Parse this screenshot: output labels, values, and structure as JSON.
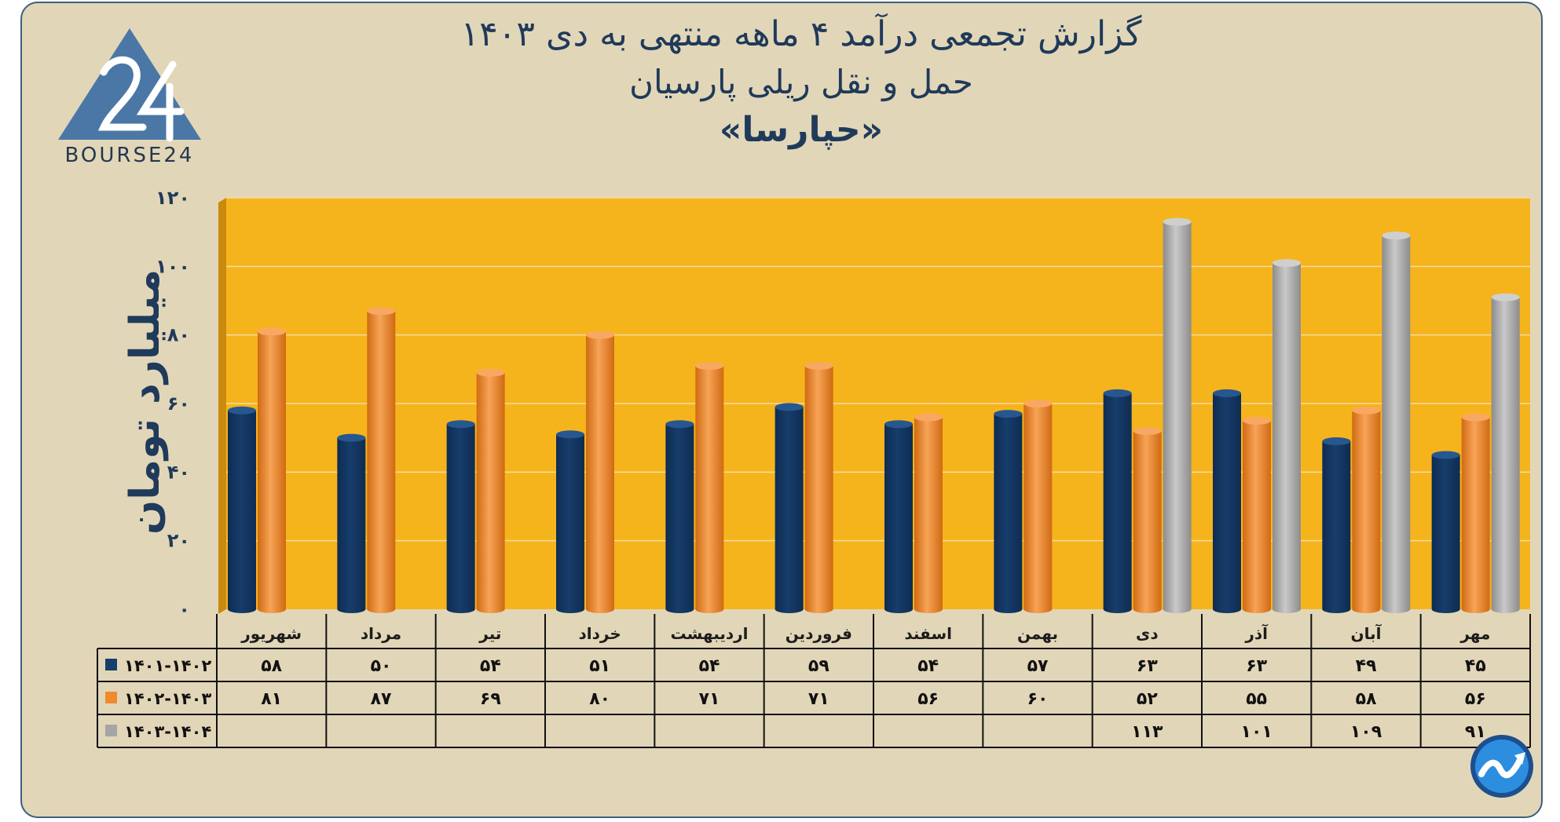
{
  "title": {
    "line1": "گزارش تجمعی درآمد ۴ ماهه منتهی به دی ۱۴۰۳",
    "line2": "حمل و نقل ریلی پارسیان",
    "line3": "«حپارسا»"
  },
  "logo": {
    "text": "BOURSE24",
    "mark": "24"
  },
  "colors": {
    "background": "#e2d6b8",
    "plot_area": "#f6b41c",
    "series_1": "#173d6b",
    "series_2": "#f08a2e",
    "series_3": "#a5a5a5",
    "text": "#1f3a5a"
  },
  "chart_data": {
    "type": "bar",
    "ylabel": "میلیارد تومان",
    "ylim": [
      0,
      120
    ],
    "ytick_labels": [
      "۰",
      "۲۰",
      "۴۰",
      "۶۰",
      "۸۰",
      "۱۰۰",
      "۱۲۰"
    ],
    "categories": [
      "مهر",
      "آبان",
      "آذر",
      "دی",
      "بهمن",
      "اسفند",
      "فروردین",
      "اردیبهشت",
      "خرداد",
      "تیر",
      "مرداد",
      "شهریور"
    ],
    "series": [
      {
        "name": "۱۴۰۱-۱۴۰۲",
        "values": [
          45,
          49,
          63,
          63,
          57,
          54,
          59,
          54,
          51,
          54,
          50,
          58
        ],
        "labels": [
          "۴۵",
          "۴۹",
          "۶۳",
          "۶۳",
          "۵۷",
          "۵۴",
          "۵۹",
          "۵۴",
          "۵۱",
          "۵۴",
          "۵۰",
          "۵۸"
        ]
      },
      {
        "name": "۱۴۰۲-۱۴۰۳",
        "values": [
          56,
          58,
          55,
          52,
          60,
          56,
          71,
          71,
          80,
          69,
          87,
          81
        ],
        "labels": [
          "۵۶",
          "۵۸",
          "۵۵",
          "۵۲",
          "۶۰",
          "۵۶",
          "۷۱",
          "۷۱",
          "۸۰",
          "۶۹",
          "۸۷",
          "۸۱"
        ]
      },
      {
        "name": "۱۴۰۳-۱۴۰۴",
        "values": [
          91,
          109,
          101,
          113,
          null,
          null,
          null,
          null,
          null,
          null,
          null,
          null
        ],
        "labels": [
          "۹۱",
          "۱۰۹",
          "۱۰۱",
          "۱۱۳",
          "",
          "",
          "",
          "",
          "",
          "",
          "",
          ""
        ]
      }
    ],
    "grid": true,
    "legend": "data-table-left"
  },
  "corner_icon": "trend-arrow-icon"
}
